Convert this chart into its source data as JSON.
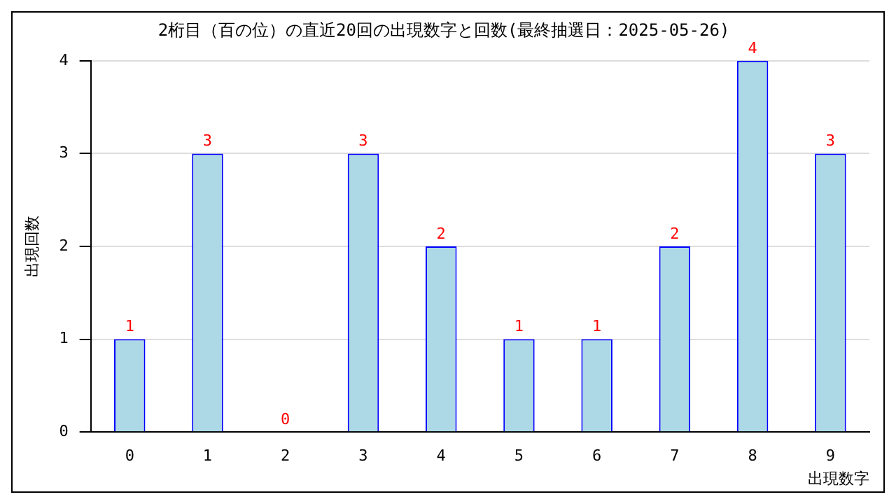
{
  "chart_data": {
    "type": "bar",
    "title": "2桁目（百の位）の直近20回の出現数字と回数(最終抽選日：2025-05-26)",
    "xlabel": "出現数字",
    "ylabel": "出現回数",
    "categories": [
      "0",
      "1",
      "2",
      "3",
      "4",
      "5",
      "6",
      "7",
      "8",
      "9"
    ],
    "values": [
      1,
      3,
      0,
      3,
      2,
      1,
      1,
      2,
      4,
      3
    ],
    "color": "#add8e6",
    "ylim": [
      0,
      4
    ],
    "yticks": [
      0,
      1,
      2,
      3,
      4
    ],
    "grid": "y",
    "data_labels": true,
    "legend": false
  }
}
